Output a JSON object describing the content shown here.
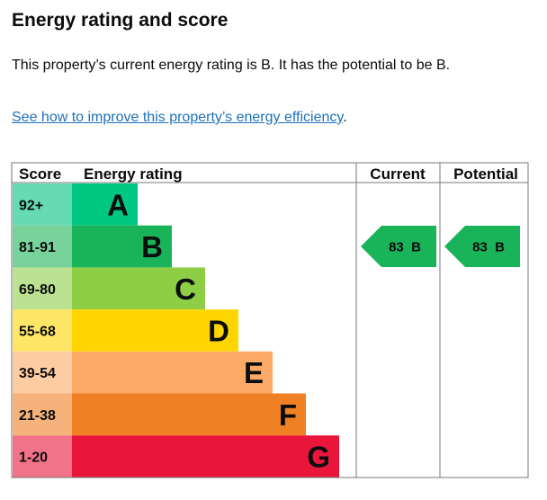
{
  "page": {
    "heading": "Energy rating and score",
    "summary": "This property’s current energy rating is B. It has the potential to be B.",
    "improve_link": "See how to improve this property’s energy efficiency",
    "improve_suffix": "."
  },
  "table": {
    "headers": {
      "score": "Score",
      "rating": "Energy rating",
      "current": "Current",
      "potential": "Potential"
    },
    "bands": [
      {
        "score": "92+",
        "letter": "A",
        "color": "#00c781",
        "score_bg": "#66dab3"
      },
      {
        "score": "81-91",
        "letter": "B",
        "color": "#19b459",
        "score_bg": "#77d29b"
      },
      {
        "score": "69-80",
        "letter": "C",
        "color": "#8dce46",
        "score_bg": "#bbe290"
      },
      {
        "score": "55-68",
        "letter": "D",
        "color": "#ffd500",
        "score_bg": "#ffe666"
      },
      {
        "score": "39-54",
        "letter": "E",
        "color": "#fcaa65",
        "score_bg": "#fdcca3"
      },
      {
        "score": "21-38",
        "letter": "F",
        "color": "#ef8023",
        "score_bg": "#f5b37b"
      },
      {
        "score": "1-20",
        "letter": "G",
        "color": "#e9153b",
        "score_bg": "#f27289"
      }
    ],
    "current": {
      "score": 83,
      "letter": "B",
      "label": "83  B",
      "color": "#19b459"
    },
    "potential": {
      "score": 83,
      "letter": "B",
      "label": "83  B",
      "color": "#19b459"
    }
  }
}
